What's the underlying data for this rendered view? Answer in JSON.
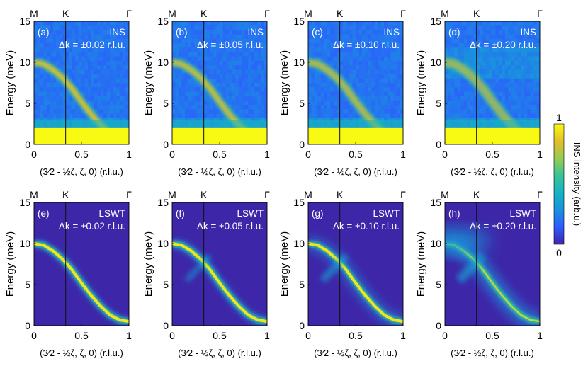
{
  "chart_data": {
    "type": "heatmap",
    "x_range": [
      0,
      1
    ],
    "y_range": [
      0,
      15
    ],
    "x_ticks": [
      "0",
      "0.5",
      "1"
    ],
    "y_ticks": [
      "0",
      "5",
      "10",
      "15"
    ],
    "x_label": "(3⁄2 - ½ζ, ζ, 0) (r.l.u.)",
    "y_label": "Energy (meV)",
    "symmetry_points": [
      {
        "label": "M",
        "x": 0
      },
      {
        "label": "K",
        "x": 0.3333
      },
      {
        "label": "Γ",
        "x": 1
      }
    ],
    "dispersion": {
      "description": "magnon branch E(ζ)",
      "zeta": [
        0,
        0.1,
        0.2,
        0.3,
        0.333,
        0.4,
        0.5,
        0.6,
        0.7,
        0.8,
        0.9,
        1.0
      ],
      "energy": [
        10.0,
        9.8,
        9.1,
        8.1,
        7.7,
        6.8,
        5.2,
        3.7,
        2.4,
        1.3,
        0.7,
        0.5
      ]
    },
    "panels": [
      {
        "id": "a",
        "label": "(a)",
        "method": "INS",
        "dk": "Δk = ±0.02 r.l.u."
      },
      {
        "id": "b",
        "label": "(b)",
        "method": "INS",
        "dk": "Δk = ±0.05 r.l.u."
      },
      {
        "id": "c",
        "label": "(c)",
        "method": "INS",
        "dk": "Δk = ±0.10 r.l.u."
      },
      {
        "id": "d",
        "label": "(d)",
        "method": "INS",
        "dk": "Δk = ±0.20 r.l.u."
      },
      {
        "id": "e",
        "label": "(e)",
        "method": "LSWT",
        "dk": "Δk = ±0.02 r.l.u."
      },
      {
        "id": "f",
        "label": "(f)",
        "method": "LSWT",
        "dk": "Δk = ±0.05 r.l.u."
      },
      {
        "id": "g",
        "label": "(g)",
        "method": "LSWT",
        "dk": "Δk = ±0.10 r.l.u."
      },
      {
        "id": "h",
        "label": "(h)",
        "method": "LSWT",
        "dk": "Δk = ±0.20 r.l.u."
      }
    ],
    "colorbar": {
      "label": "INS intensity (arb.u.)",
      "min_label": "0",
      "max_label": "1",
      "range": [
        0,
        1
      ],
      "colormap": [
        "#3e26a8",
        "#2d5bff",
        "#1b8fe0",
        "#13b3c4",
        "#38c397",
        "#96cb53",
        "#e0be2b",
        "#f9fa14"
      ]
    }
  }
}
